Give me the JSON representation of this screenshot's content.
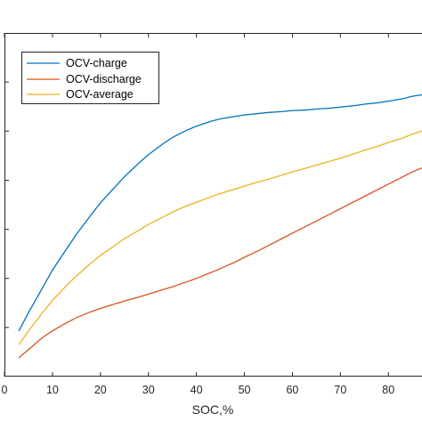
{
  "chart_data": {
    "type": "line",
    "title": "",
    "xlabel": "SOC,%",
    "ylabel": "",
    "xlim": [
      0,
      87
    ],
    "ylim": [
      0,
      7
    ],
    "x_ticks": [
      0,
      10,
      20,
      30,
      40,
      50,
      60,
      70,
      80
    ],
    "x_tick_labels": [
      "0",
      "10",
      "20",
      "30",
      "40",
      "50",
      "60",
      "70",
      "80"
    ],
    "y_ticks": [
      1,
      2,
      3,
      4,
      5,
      6
    ],
    "grid": false,
    "legend_position": "top-left",
    "series": [
      {
        "name": "OCV-charge",
        "color": "#0072bd",
        "x": [
          3,
          5,
          8,
          10,
          13,
          15,
          18,
          20,
          23,
          25,
          28,
          30,
          33,
          35,
          38,
          40,
          43,
          45,
          48,
          50,
          53,
          55,
          58,
          60,
          63,
          65,
          68,
          70,
          73,
          75,
          78,
          80,
          83,
          85,
          87
        ],
        "y": [
          0.93,
          1.3,
          1.82,
          2.17,
          2.61,
          2.9,
          3.29,
          3.54,
          3.86,
          4.07,
          4.35,
          4.52,
          4.74,
          4.87,
          5.02,
          5.1,
          5.2,
          5.25,
          5.3,
          5.33,
          5.36,
          5.38,
          5.4,
          5.42,
          5.43,
          5.45,
          5.47,
          5.49,
          5.52,
          5.55,
          5.58,
          5.61,
          5.66,
          5.71,
          5.74
        ]
      },
      {
        "name": "OCV-discharge",
        "color": "#d95319",
        "x": [
          3,
          5,
          8,
          10,
          13,
          15,
          18,
          20,
          23,
          25,
          28,
          30,
          33,
          35,
          38,
          40,
          43,
          45,
          48,
          50,
          53,
          55,
          58,
          60,
          63,
          65,
          68,
          70,
          73,
          75,
          78,
          80,
          83,
          85,
          87
        ],
        "y": [
          0.38,
          0.55,
          0.8,
          0.93,
          1.1,
          1.2,
          1.32,
          1.39,
          1.48,
          1.54,
          1.62,
          1.68,
          1.77,
          1.83,
          1.93,
          2.0,
          2.12,
          2.2,
          2.33,
          2.43,
          2.57,
          2.67,
          2.82,
          2.92,
          3.07,
          3.17,
          3.32,
          3.42,
          3.57,
          3.67,
          3.82,
          3.92,
          4.07,
          4.17,
          4.25
        ]
      },
      {
        "name": "OCV-average",
        "color": "#edb120",
        "x": [
          3,
          5,
          8,
          10,
          13,
          15,
          18,
          20,
          23,
          25,
          28,
          30,
          33,
          35,
          38,
          40,
          43,
          45,
          48,
          50,
          53,
          55,
          58,
          60,
          63,
          65,
          68,
          70,
          73,
          75,
          78,
          80,
          83,
          85,
          87
        ],
        "y": [
          0.65,
          0.93,
          1.31,
          1.55,
          1.86,
          2.05,
          2.31,
          2.47,
          2.67,
          2.81,
          2.98,
          3.1,
          3.25,
          3.35,
          3.48,
          3.55,
          3.66,
          3.73,
          3.82,
          3.88,
          3.97,
          4.02,
          4.11,
          4.17,
          4.25,
          4.31,
          4.39,
          4.45,
          4.54,
          4.61,
          4.7,
          4.77,
          4.86,
          4.94,
          5.0
        ]
      }
    ]
  }
}
